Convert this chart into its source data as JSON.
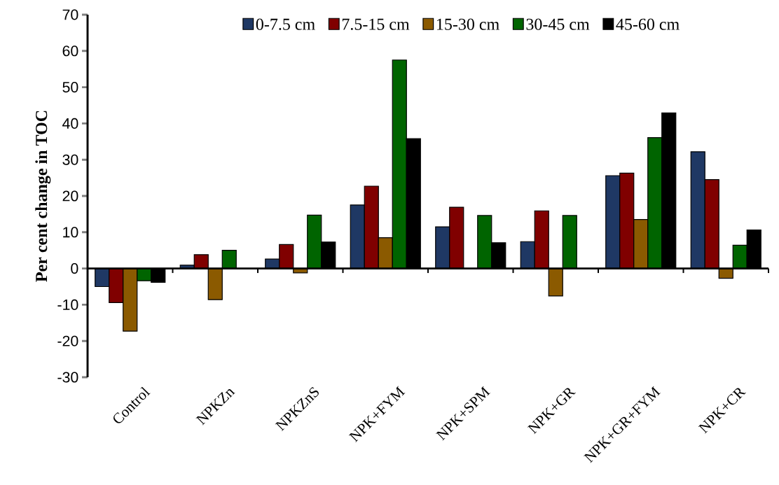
{
  "chart_data": {
    "type": "bar",
    "ylabel": "Per cent change in TOC",
    "categories": [
      "Control",
      "NPKZn",
      "NPKZnS",
      "NPK+FYM",
      "NPK+SPM",
      "NPK+GR",
      "NPK+GR+FYM",
      "NPK+CR"
    ],
    "series": [
      {
        "name": "0-7.5 cm",
        "color": "#1f3864",
        "values": [
          -5.0,
          0.9,
          2.6,
          17.5,
          11.5,
          7.4,
          25.6,
          32.2
        ]
      },
      {
        "name": "7.5-15 cm",
        "color": "#800000",
        "values": [
          -9.4,
          3.8,
          6.6,
          22.7,
          16.9,
          15.9,
          26.3,
          24.5
        ]
      },
      {
        "name": "15-30 cm",
        "color": "#8b5a00",
        "values": [
          -17.3,
          -8.6,
          -1.2,
          8.5,
          null,
          -7.6,
          13.5,
          -2.7
        ]
      },
      {
        "name": "30-45 cm",
        "color": "#006400",
        "values": [
          -3.4,
          5.0,
          14.7,
          57.5,
          14.6,
          14.6,
          36.1,
          6.4
        ]
      },
      {
        "name": "45-60 cm",
        "color": "#000000",
        "values": [
          -3.8,
          null,
          7.3,
          35.8,
          7.1,
          null,
          42.9,
          10.6
        ]
      }
    ],
    "ylim": [
      -30,
      70
    ],
    "yticks": [
      -30,
      -20,
      -10,
      0,
      10,
      20,
      30,
      40,
      50,
      60,
      70
    ],
    "legend": "top"
  }
}
